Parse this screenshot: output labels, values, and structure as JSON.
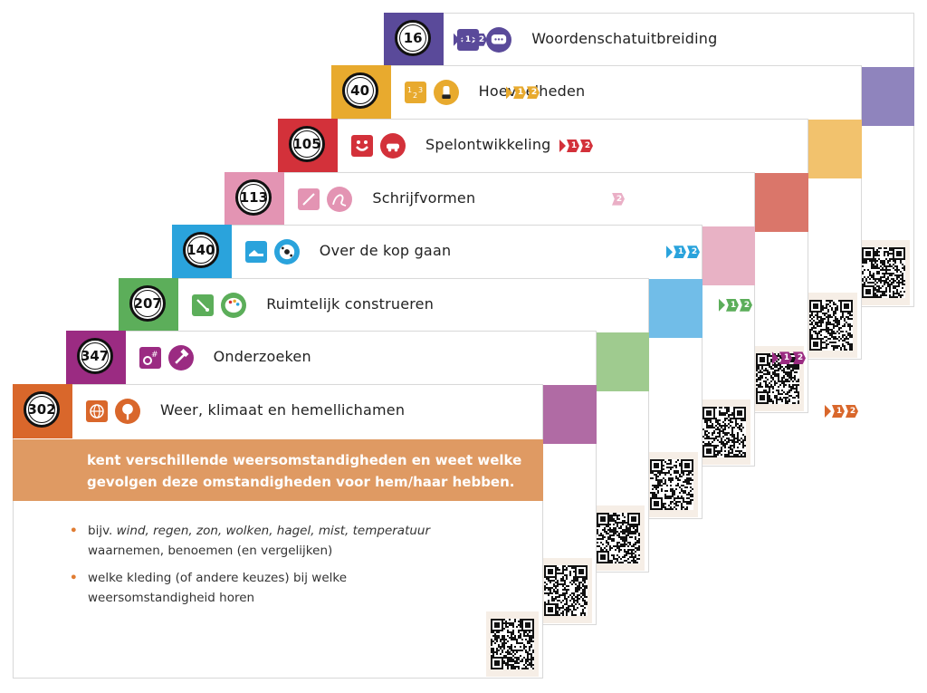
{
  "cards": [
    {
      "number": "16",
      "title": "Woordenschatuitbreiding",
      "color": "#5a4a9a",
      "stripe": "#8f84bd",
      "icon1": "lips-icon",
      "icon2": "speech-bubble-icon",
      "levels": [
        "1",
        "2"
      ]
    },
    {
      "number": "40",
      "title": "Hoeveelheden",
      "color": "#e8aa2e",
      "stripe": "#f2c26d",
      "icon1": "numbers-icon",
      "icon2": "hand-counting-icon",
      "levels": [
        "1",
        "2"
      ]
    },
    {
      "number": "105",
      "title": "Spelontwikkeling",
      "color": "#d3313a",
      "stripe": "#da766a",
      "icon1": "smiley-icon",
      "icon2": "toy-car-icon",
      "levels": [
        "1",
        "2"
      ]
    },
    {
      "number": "113",
      "title": "Schrijfvormen",
      "color": "#e394b3",
      "stripe": "#e8b2c5",
      "icon1": "pencil-icon",
      "icon2": "scribble-icon",
      "levels": [
        "2"
      ]
    },
    {
      "number": "140",
      "title": "Over de kop gaan",
      "color": "#2aa3dc",
      "stripe": "#71bde8",
      "icon1": "shoe-icon",
      "icon2": "ball-icon",
      "levels": [
        "1",
        "2"
      ]
    },
    {
      "number": "207",
      "title": "Ruimtelijk construeren",
      "color": "#5cae5a",
      "stripe": "#9fcb8f",
      "icon1": "brush-icon",
      "icon2": "palette-icon",
      "levels": [
        "1",
        "2"
      ]
    },
    {
      "number": "347",
      "title": "Onderzoeken",
      "color": "#9b2b82",
      "stripe": "#b06ba4",
      "icon1": "gears-icon",
      "icon2": "hammer-icon",
      "levels": [
        "1",
        "2"
      ]
    },
    {
      "number": "302",
      "title": "Weer, klimaat en hemellichamen",
      "color": "#d9672b",
      "stripe": "#df9a63",
      "icon1": "globe-icon",
      "icon2": "tree-icon",
      "levels": [
        "1",
        "2"
      ]
    }
  ],
  "front": {
    "description": "kent verschillende weersomstandigheden en weet welke gevolgen deze omstandigheden voor hem/haar hebben.",
    "bullets": [
      {
        "prefix": "bijv. ",
        "italic": "wind, regen, zon, wolken, hagel, mist, temperatuur",
        "suffix": " waarnemen, benoemen (en vergelijken)"
      },
      {
        "prefix": "welke kleding (of andere keuzes) bij welke weersomstandigheid horen",
        "italic": "",
        "suffix": ""
      }
    ]
  }
}
